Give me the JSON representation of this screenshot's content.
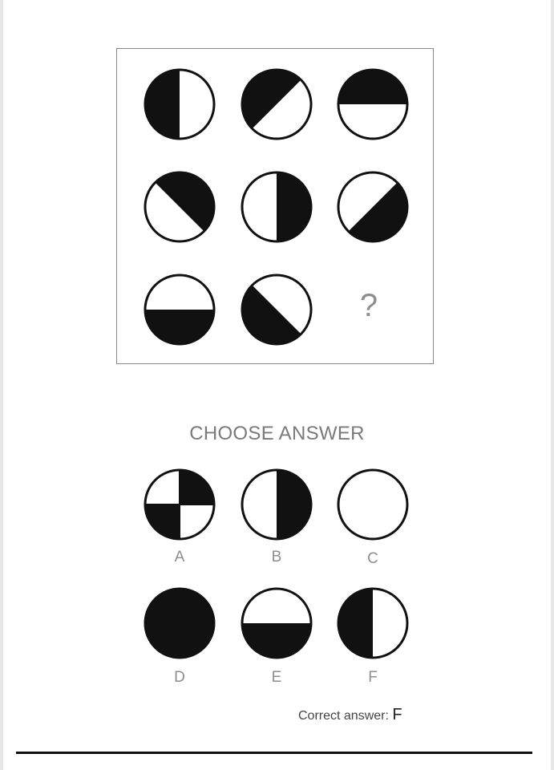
{
  "puzzle": {
    "grid": [
      {
        "black_half": "left"
      },
      {
        "black_half": "upper-left"
      },
      {
        "black_half": "top"
      },
      {
        "black_half": "upper-right"
      },
      {
        "black_half": "right"
      },
      {
        "black_half": "lower-right"
      },
      {
        "black_half": "bottom"
      },
      {
        "black_half": "lower-left"
      }
    ],
    "missing_mark": "?"
  },
  "choose_title": "CHOOSE ANSWER",
  "options": [
    {
      "label": "A",
      "pattern": "quarters"
    },
    {
      "label": "B",
      "pattern": "right"
    },
    {
      "label": "C",
      "pattern": "empty"
    },
    {
      "label": "D",
      "pattern": "full"
    },
    {
      "label": "E",
      "pattern": "bottom"
    },
    {
      "label": "F",
      "pattern": "left"
    }
  ],
  "answer": {
    "prefix": "Correct answer:",
    "value": "F"
  },
  "colors": {
    "fill": "#111111",
    "stroke": "#111111",
    "box_border": "#8a8a8a",
    "label": "#8e8e8e"
  }
}
